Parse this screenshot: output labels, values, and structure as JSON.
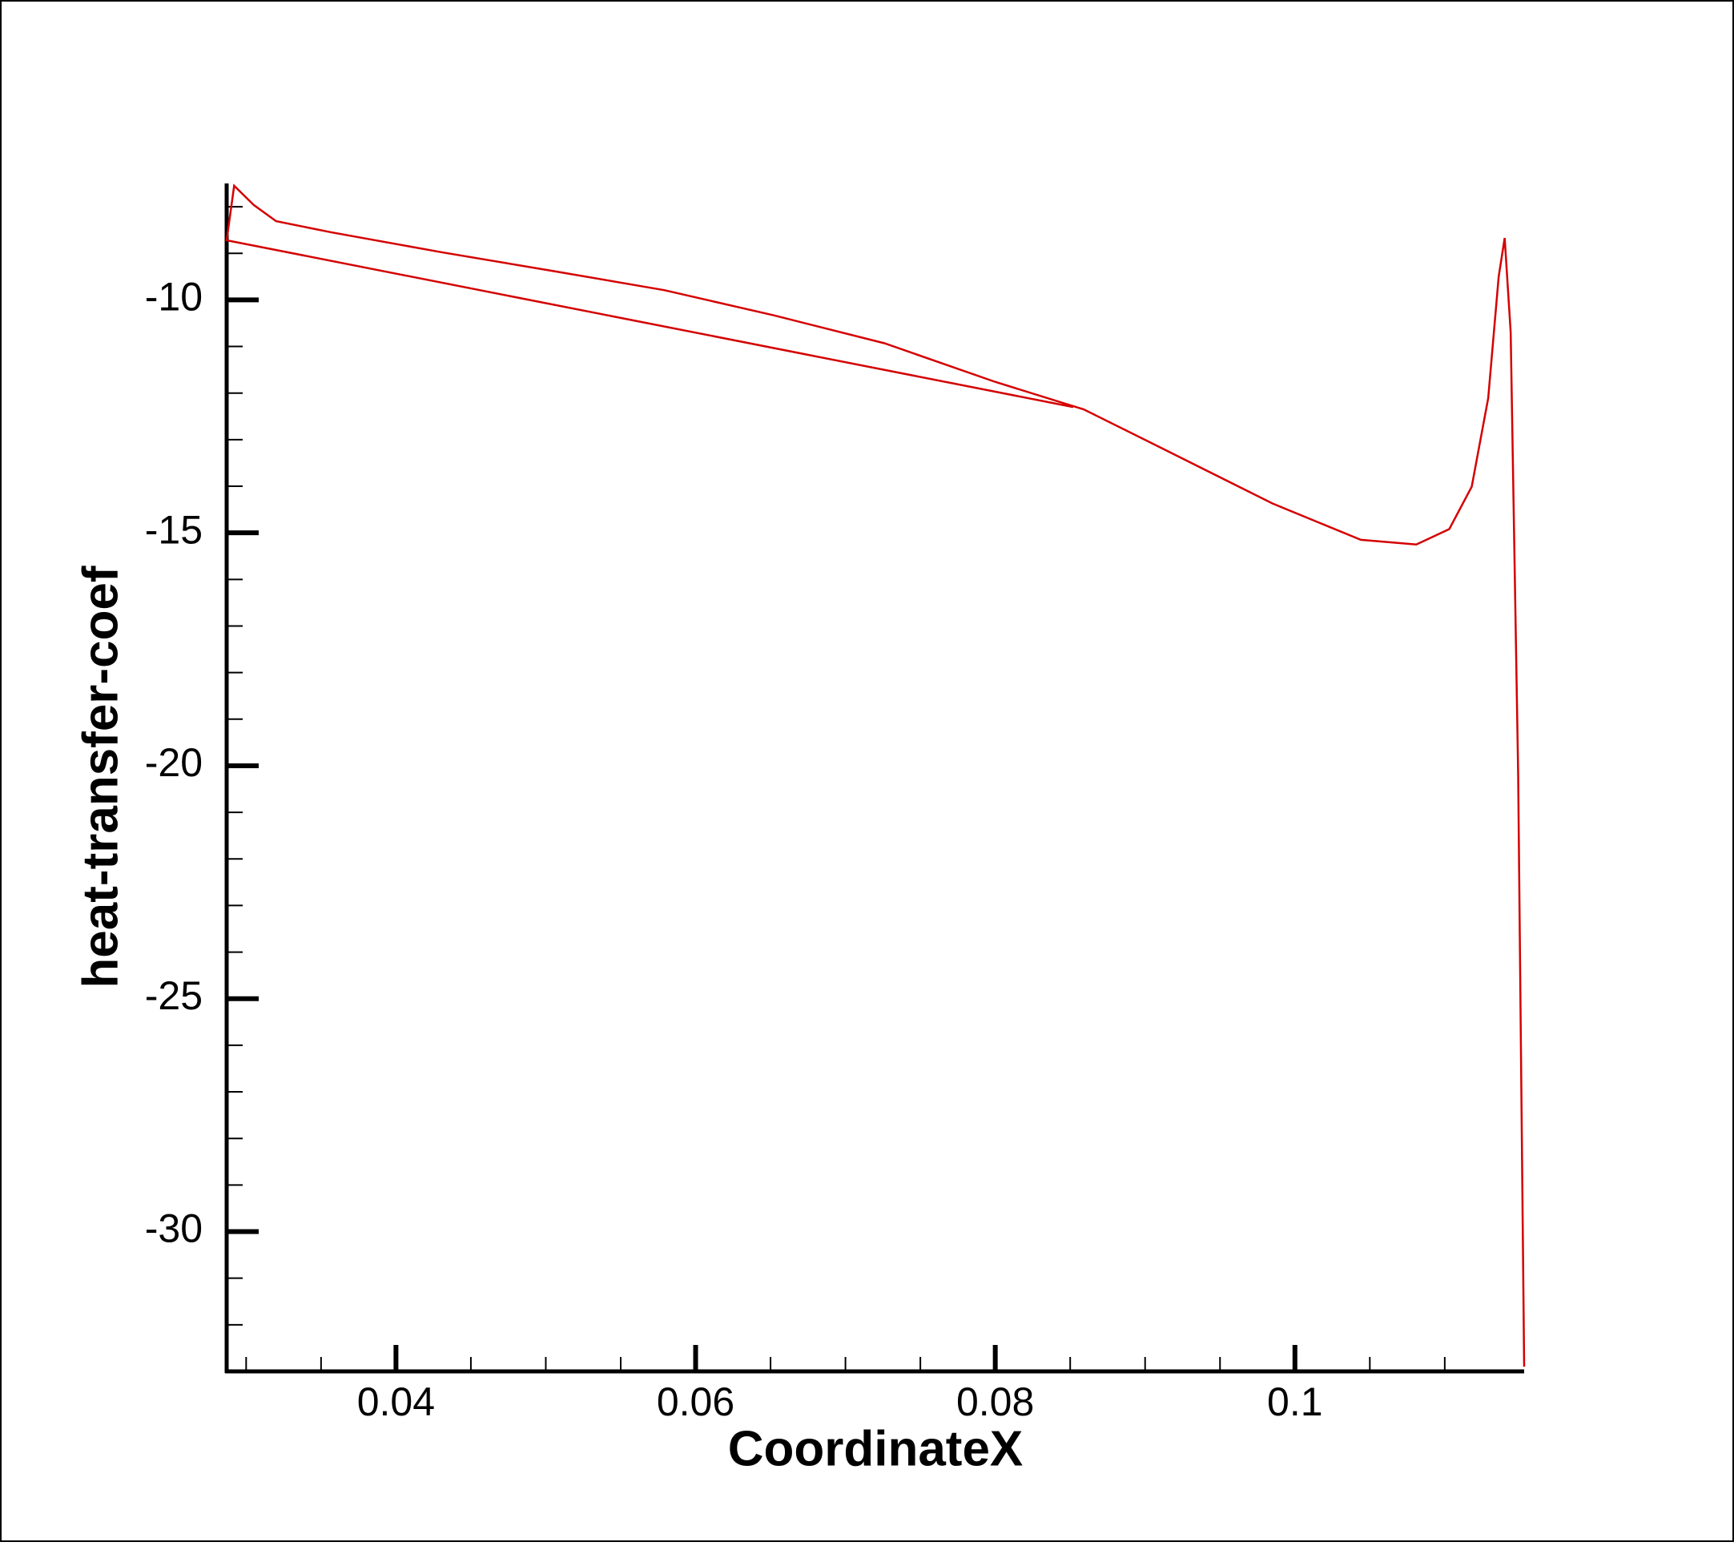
{
  "chart_data": {
    "type": "line",
    "x_label": "CoordinateX",
    "y_label": "heat-transfer-coef",
    "xlim": [
      0.0287,
      0.1153
    ],
    "ylim": [
      -33.0,
      -7.5
    ],
    "xticks": [
      0.04,
      0.06,
      0.08,
      0.1
    ],
    "xticks_minor": [
      0.03,
      0.035,
      0.045,
      0.05,
      0.055,
      0.065,
      0.07,
      0.075,
      0.085,
      0.09,
      0.095,
      0.105,
      0.11
    ],
    "yticks": [
      -10,
      -15,
      -20,
      -25,
      -30
    ],
    "yticks_minor": [
      -8,
      -9,
      -11,
      -12,
      -13,
      -14,
      -16,
      -17,
      -18,
      -19,
      -21,
      -22,
      -23,
      -24,
      -26,
      -27,
      -28,
      -29,
      -31,
      -32
    ],
    "series": [
      {
        "name": "heat-transfer-coef",
        "color": "#d40000",
        "x": [
          0.0852,
          0.0287,
          0.0292,
          0.0305,
          0.032,
          0.0357,
          0.0431,
          0.0505,
          0.0579,
          0.0652,
          0.0726,
          0.08,
          0.0859,
          0.0911,
          0.0985,
          0.1044,
          0.1081,
          0.1103,
          0.1118,
          0.1129,
          0.1136,
          0.114,
          0.1144,
          0.1149,
          0.1153
        ],
        "values": [
          -12.3,
          -8.72,
          -7.55,
          -7.96,
          -8.31,
          -8.55,
          -8.98,
          -9.38,
          -9.79,
          -10.33,
          -10.93,
          -11.76,
          -12.35,
          -13.18,
          -14.37,
          -15.15,
          -15.25,
          -14.92,
          -14.01,
          -12.11,
          -9.5,
          -8.67,
          -10.69,
          -20.19,
          -32.9
        ]
      }
    ]
  }
}
